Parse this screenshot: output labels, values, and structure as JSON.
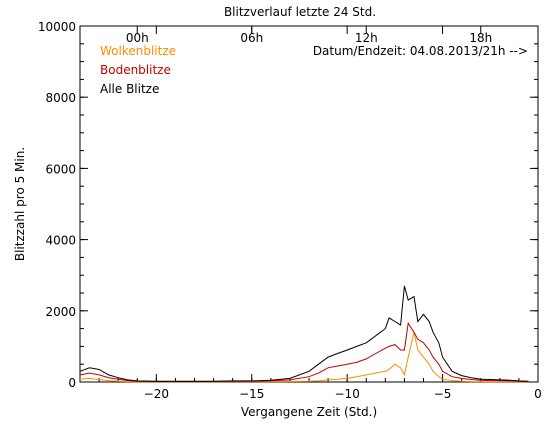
{
  "chart_data": {
    "type": "line",
    "title": "Blitzverlauf letzte 24 Std.",
    "xlabel": "Vergangene Zeit (Std.)",
    "ylabel": "Blitzzahl pro 5 Min.",
    "xlim": [
      -24,
      0
    ],
    "ylim": [
      0,
      10000
    ],
    "x_ticks": [
      -20,
      -15,
      -10,
      -5,
      0
    ],
    "x_tick_labels": [
      "−20",
      "−15",
      "−10",
      "−5",
      "0"
    ],
    "y_ticks": [
      0,
      2000,
      4000,
      6000,
      8000,
      10000
    ],
    "y_tick_labels": [
      "0",
      "2000",
      "4000",
      "6000",
      "8000",
      "10000"
    ],
    "top_axis": {
      "ticks": [
        -21,
        -15,
        -9,
        -3
      ],
      "labels": [
        "00h",
        "06h",
        "12h",
        "18h"
      ]
    },
    "timestamp_label": "Datum/Endzeit: 04.08.2013/21h -->",
    "grid": false,
    "legend_position": "top-left",
    "series": [
      {
        "name": "Wolkenblitze",
        "color": "#ff8c00",
        "x": [
          -24,
          -23.5,
          -23,
          -22.5,
          -22,
          -21.5,
          -21,
          -20,
          -19,
          -18,
          -17,
          -16,
          -15,
          -14,
          -13,
          -12,
          -11.5,
          -11,
          -10.5,
          -10,
          -9.5,
          -9,
          -8.5,
          -8,
          -7.8,
          -7.5,
          -7.2,
          -7,
          -6.8,
          -6.5,
          -6.3,
          -6,
          -5.7,
          -5.5,
          -5.2,
          -5,
          -4.5,
          -4,
          -3.5,
          -3,
          -2.5,
          -2,
          -1.5,
          -1,
          -0.5
        ],
        "values": [
          80,
          100,
          70,
          40,
          20,
          10,
          5,
          5,
          5,
          5,
          5,
          10,
          10,
          10,
          15,
          20,
          30,
          60,
          80,
          100,
          150,
          200,
          250,
          300,
          350,
          500,
          400,
          200,
          700,
          1400,
          900,
          700,
          500,
          300,
          150,
          80,
          40,
          20,
          10,
          10,
          5,
          5,
          5,
          5,
          5
        ]
      },
      {
        "name": "Bodenblitze",
        "color": "#c00000",
        "x": [
          -24,
          -23.5,
          -23,
          -22.5,
          -22,
          -21.5,
          -21,
          -20,
          -19,
          -18,
          -17,
          -16,
          -15,
          -14,
          -13,
          -12,
          -11.5,
          -11,
          -10.5,
          -10,
          -9.5,
          -9,
          -8.5,
          -8,
          -7.8,
          -7.5,
          -7.2,
          -7,
          -6.8,
          -6.5,
          -6.3,
          -6,
          -5.7,
          -5.5,
          -5.2,
          -5,
          -4.5,
          -4,
          -3.5,
          -3,
          -2.5,
          -2,
          -1.5,
          -1,
          -0.5
        ],
        "values": [
          200,
          250,
          200,
          120,
          80,
          40,
          20,
          15,
          15,
          15,
          15,
          20,
          20,
          30,
          60,
          150,
          250,
          400,
          450,
          500,
          550,
          650,
          800,
          950,
          1000,
          1050,
          900,
          900,
          1650,
          1400,
          1200,
          1100,
          900,
          700,
          500,
          300,
          150,
          100,
          70,
          50,
          40,
          40,
          30,
          20,
          10
        ]
      },
      {
        "name": "Alle Blitze",
        "color": "#000000",
        "x": [
          -24,
          -23.5,
          -23,
          -22.5,
          -22,
          -21.5,
          -21,
          -20,
          -19,
          -18,
          -17,
          -16,
          -15,
          -14,
          -13,
          -12,
          -11.5,
          -11,
          -10.5,
          -10,
          -9.5,
          -9,
          -8.5,
          -8,
          -7.8,
          -7.5,
          -7.2,
          -7,
          -6.8,
          -6.5,
          -6.3,
          -6,
          -5.7,
          -5.5,
          -5.2,
          -5,
          -4.5,
          -4,
          -3.5,
          -3,
          -2.5,
          -2,
          -1.5,
          -1,
          -0.5
        ],
        "values": [
          300,
          400,
          350,
          200,
          120,
          60,
          30,
          20,
          20,
          20,
          20,
          30,
          30,
          50,
          100,
          300,
          500,
          700,
          800,
          900,
          1000,
          1100,
          1300,
          1500,
          1800,
          1700,
          1600,
          2700,
          2300,
          2400,
          1700,
          1900,
          1700,
          1400,
          1100,
          700,
          300,
          180,
          120,
          80,
          70,
          60,
          50,
          30,
          20
        ]
      }
    ]
  }
}
